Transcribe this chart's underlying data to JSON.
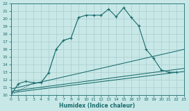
{
  "xlabel": "Humidex (Indice chaleur)",
  "xlim": [
    0,
    23
  ],
  "ylim": [
    10,
    22
  ],
  "xticks": [
    0,
    1,
    2,
    3,
    4,
    5,
    6,
    7,
    8,
    9,
    10,
    11,
    12,
    13,
    14,
    15,
    16,
    17,
    18,
    19,
    20,
    21,
    22,
    23
  ],
  "yticks": [
    10,
    11,
    12,
    13,
    14,
    15,
    16,
    17,
    18,
    19,
    20,
    21,
    22
  ],
  "bg_color": "#c8e8e8",
  "line_color": "#1a6b6b",
  "grid_color": "#b0d0d0",
  "main_curve_x": [
    0,
    1,
    2,
    3,
    4,
    5,
    6,
    7,
    8,
    9,
    10,
    11,
    12,
    13,
    14,
    15,
    16,
    17,
    18,
    19,
    20,
    21,
    22
  ],
  "main_curve_y": [
    10.0,
    11.5,
    11.8,
    11.6,
    11.6,
    12.9,
    16.0,
    17.2,
    17.5,
    20.2,
    20.5,
    20.5,
    20.5,
    21.3,
    20.3,
    21.5,
    20.2,
    19.1,
    16.0,
    14.8,
    13.3,
    13.0,
    13.0
  ],
  "dotted_curve_x": [
    0,
    3,
    4,
    5,
    6,
    7,
    8,
    9
  ],
  "dotted_curve_y": [
    10.0,
    11.6,
    11.7,
    12.9,
    16.0,
    17.2,
    17.5,
    20.2
  ],
  "straight_lines": [
    {
      "x": [
        0,
        23
      ],
      "y": [
        10.8,
        16.0
      ]
    },
    {
      "x": [
        0,
        23
      ],
      "y": [
        10.5,
        13.5
      ]
    },
    {
      "x": [
        0,
        23
      ],
      "y": [
        10.3,
        13.1
      ]
    }
  ]
}
